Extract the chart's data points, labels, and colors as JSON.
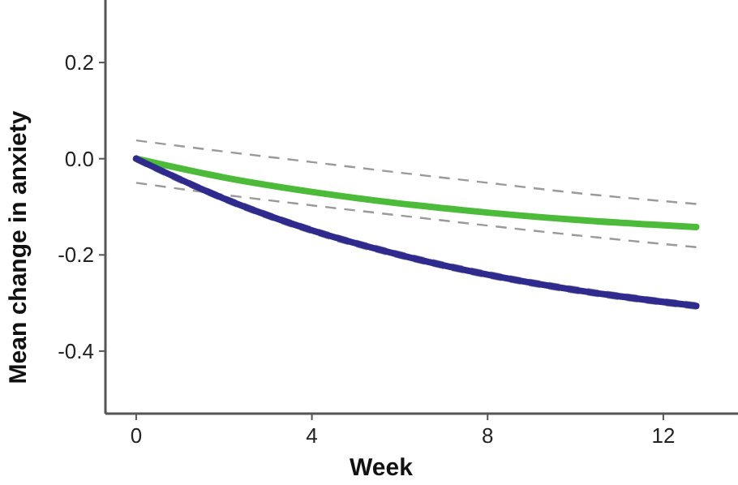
{
  "chart_data": {
    "type": "line",
    "xlabel": "Week",
    "ylabel": "Mean change in anxiety",
    "x": [
      0,
      2,
      4,
      6,
      8,
      10,
      12.75
    ],
    "series": [
      {
        "color": "#9a9a9a",
        "line_style": "dashed",
        "values": [
          0.038,
          0.015,
          -0.007,
          -0.029,
          -0.05,
          -0.071,
          -0.094
        ]
      },
      {
        "color": "#9a9a9a",
        "line_style": "dashed",
        "values": [
          -0.05,
          -0.075,
          -0.097,
          -0.118,
          -0.139,
          -0.159,
          -0.184
        ]
      },
      {
        "color": "#9a9a9a",
        "line_style": "dashed",
        "values": [
          -0.006,
          -0.089,
          -0.155,
          -0.206,
          -0.247,
          -0.279,
          -0.312
        ]
      },
      {
        "color": "#9a9a9a",
        "line_style": "dashed",
        "values": [
          0.006,
          -0.077,
          -0.143,
          -0.194,
          -0.235,
          -0.267,
          -0.3
        ]
      },
      {
        "color": "#4cbb3a",
        "values": [
          0,
          -0.039,
          -0.069,
          -0.093,
          -0.112,
          -0.127,
          -0.142
        ]
      },
      {
        "color": "#2e2a8e",
        "values": [
          0,
          -0.083,
          -0.149,
          -0.2,
          -0.241,
          -0.273,
          -0.306
        ]
      }
    ],
    "xlim": [
      -0.7,
      13.7
    ],
    "ylim": [
      -0.53,
      0.33
    ],
    "xticks": [
      0,
      4,
      8,
      12
    ],
    "yticks": [
      {
        "value": 0.2,
        "label": "0.2"
      },
      {
        "value": 0,
        "label": "0.0"
      },
      {
        "value": -0.2,
        "label": "-0.2"
      },
      {
        "value": -0.4,
        "label": "-0.4"
      }
    ],
    "grid": false,
    "marker": "none",
    "line_style": "solid"
  }
}
